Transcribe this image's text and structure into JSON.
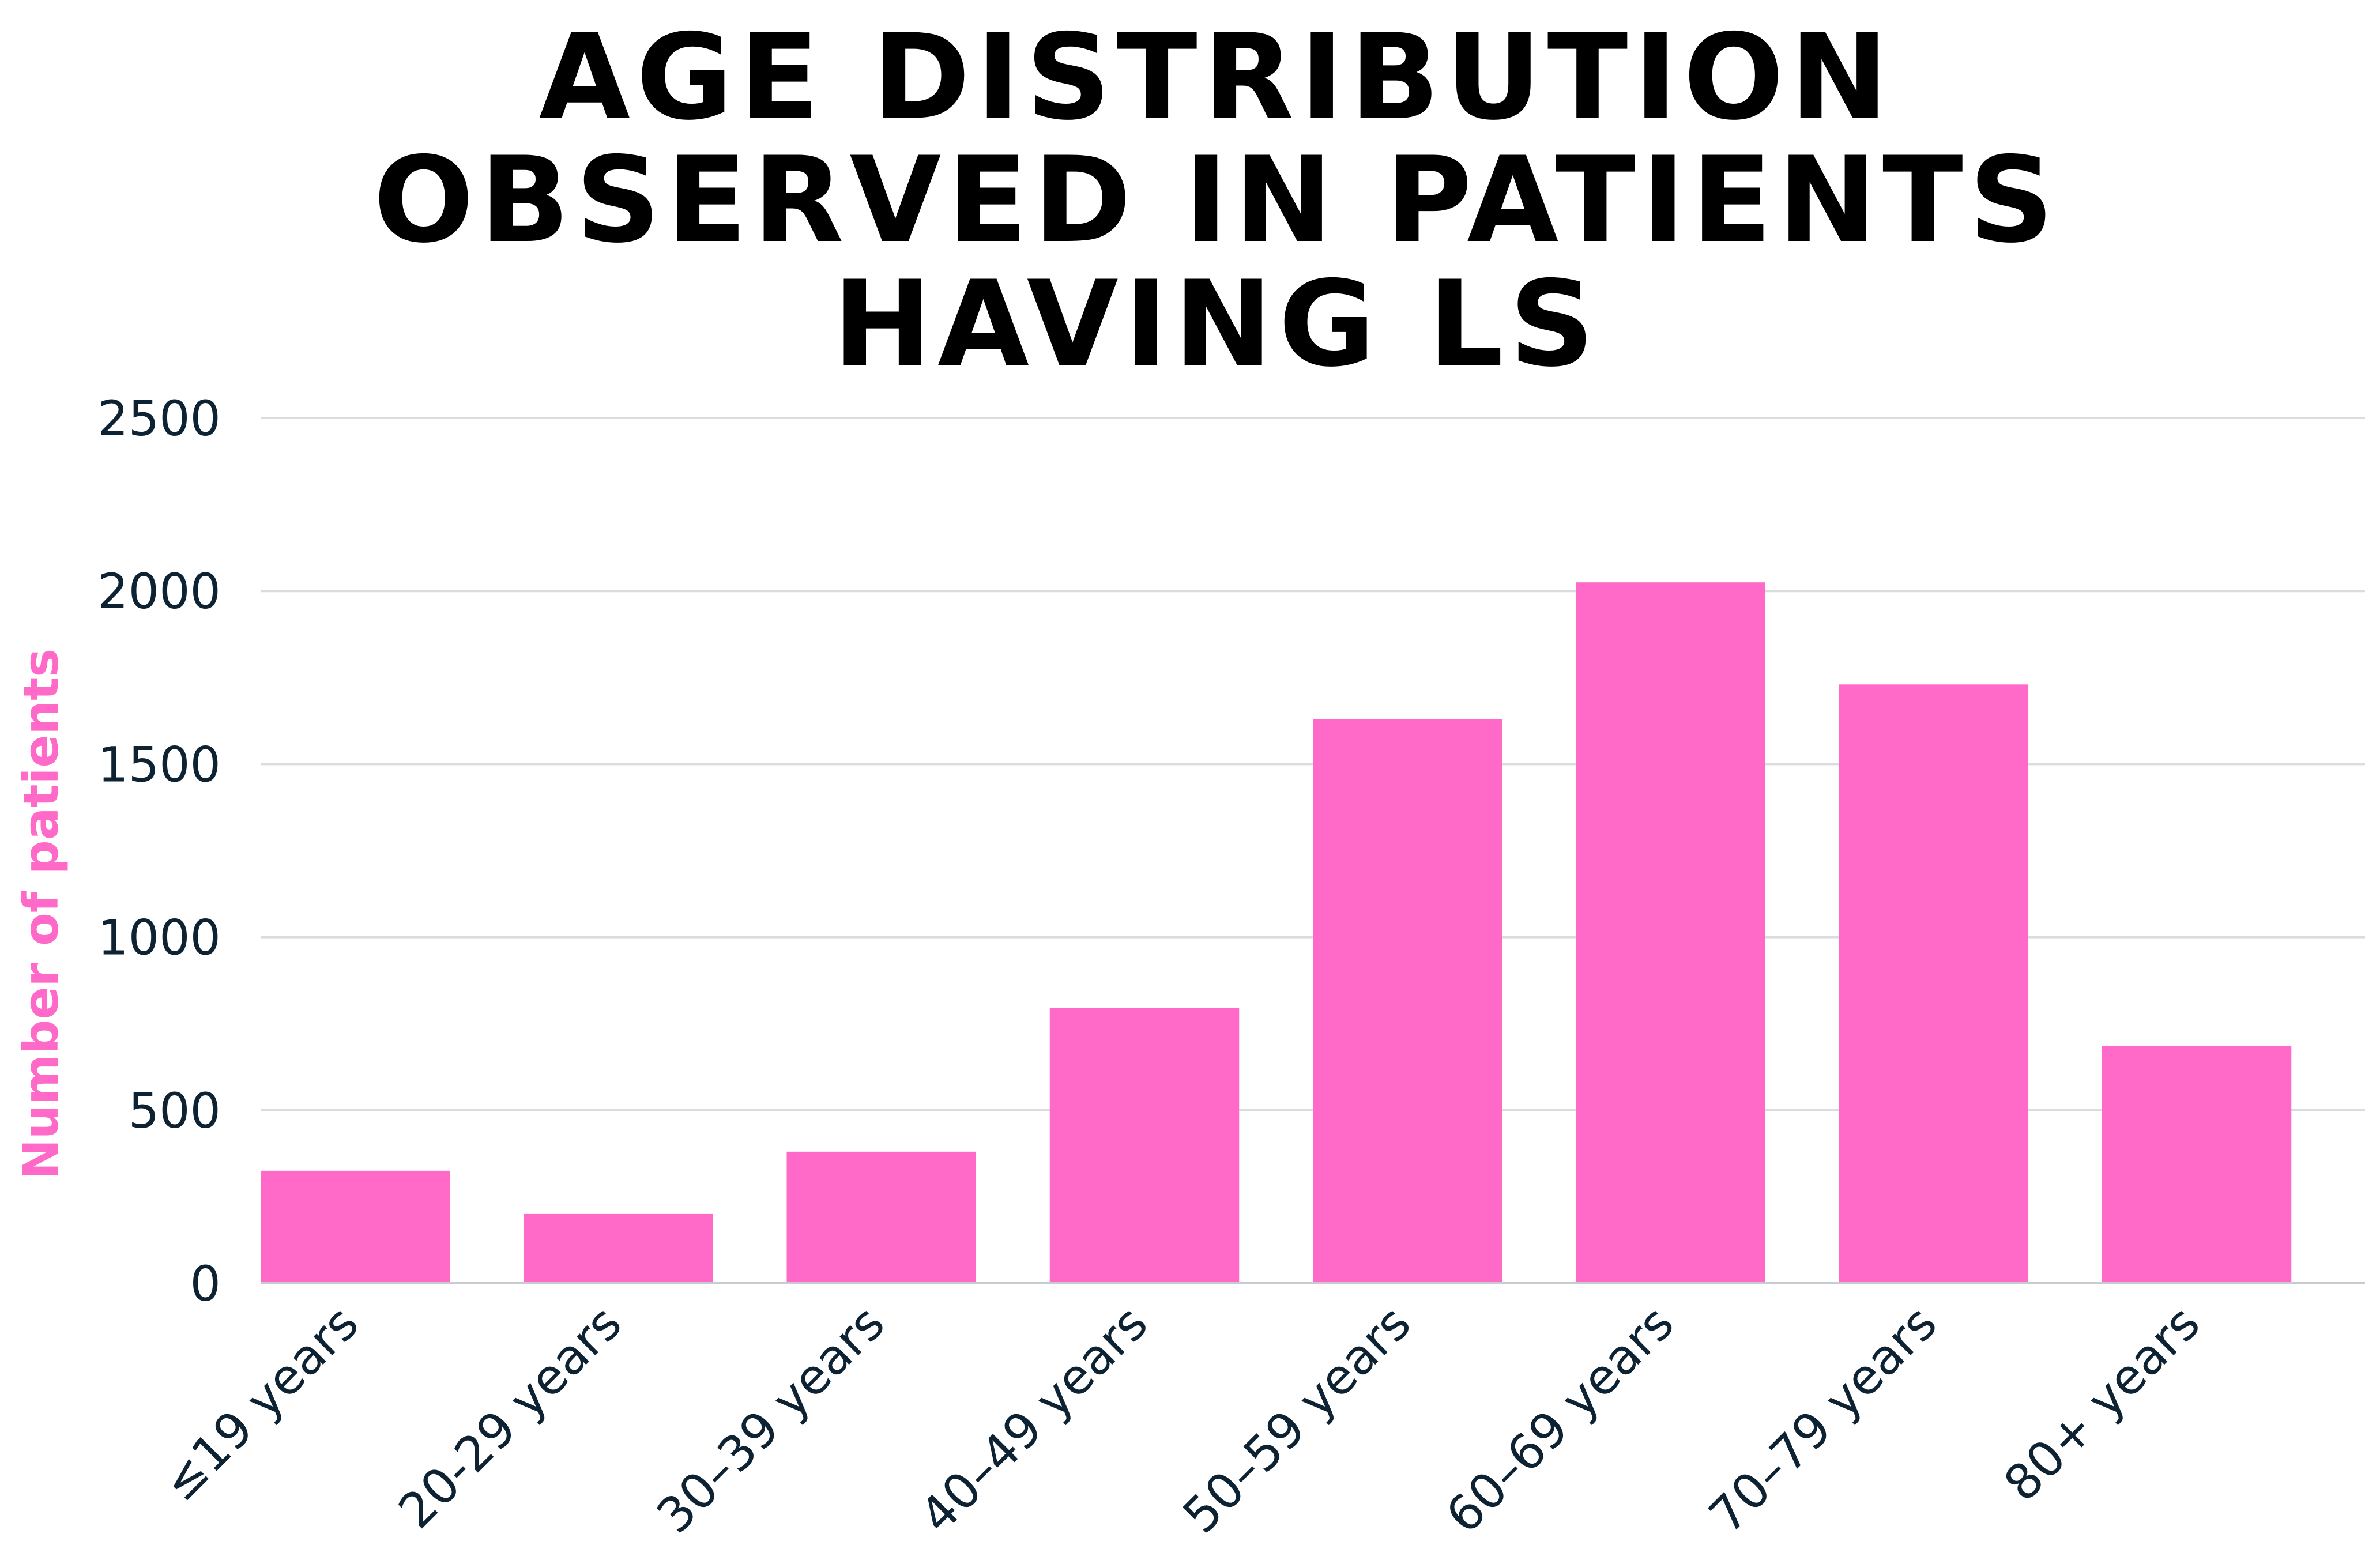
{
  "chart_data": {
    "type": "bar",
    "title_lines": [
      "AGE DISTRIBUTION",
      "OBSERVED IN PATIENTS",
      "HAVING LS"
    ],
    "title": "AGE DISTRIBUTION OBSERVED IN PATIENTS HAVING LS",
    "xlabel": "",
    "ylabel": "Number of patients",
    "categories": [
      "≤19 years",
      "20-29 years",
      "30–39 years",
      "40–49 years",
      "50–59 years",
      "60–69 years",
      "70–79 years",
      "80+ years"
    ],
    "values": [
      325,
      200,
      380,
      795,
      1630,
      2025,
      1730,
      685
    ],
    "ylim": [
      0,
      2500
    ],
    "yticks": [
      "0",
      "500",
      "1000",
      "1500",
      "2000",
      "2500"
    ],
    "ytick_values": [
      0,
      500,
      1000,
      1500,
      2000,
      2500
    ],
    "grid": true,
    "legend": "none",
    "colors": {
      "bar": "#ff69c8",
      "ylabel": "#ff69c8",
      "text": "#0d2233"
    }
  }
}
